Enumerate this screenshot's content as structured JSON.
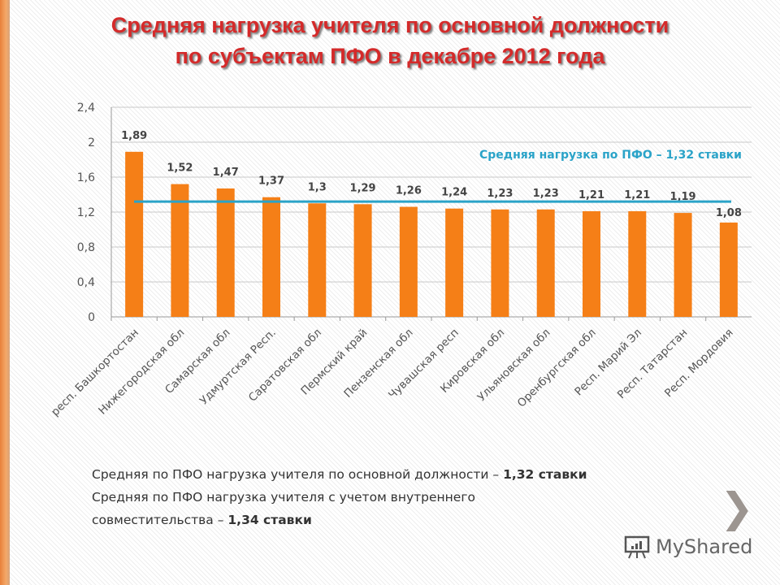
{
  "title_line1": "Средняя нагрузка учителя по основной должности",
  "title_line2": "по субъектам ПФО в декабре 2012 года",
  "chart_data": {
    "type": "bar",
    "categories": [
      "респ. Башкортостан",
      "Нижегородская обл",
      "Самарская обл",
      "Удмуртская Респ.",
      "Саратовская обл",
      "Пермский край",
      "Пензенская обл",
      "Чувашская респ",
      "Кировская обл",
      "Ульяновская обл",
      "Оренбургская обл",
      "Респ. Марий Эл",
      "Респ. Татарстан",
      "Респ. Мордовия"
    ],
    "values": [
      1.89,
      1.52,
      1.47,
      1.37,
      1.3,
      1.29,
      1.26,
      1.24,
      1.23,
      1.23,
      1.21,
      1.21,
      1.19,
      1.08
    ],
    "data_labels": [
      "1,89",
      "1,52",
      "1,47",
      "1,37",
      "1,3",
      "1,29",
      "1,26",
      "1,24",
      "1,23",
      "1,23",
      "1,21",
      "1,21",
      "1,19",
      "1,08"
    ],
    "ylim": [
      0,
      2.4
    ],
    "yticks": [
      "0",
      "0,4",
      "0,8",
      "1,2",
      "1,6",
      "2",
      "2,4"
    ],
    "grid": true,
    "bar_color": "#f57f17",
    "reference_line": {
      "value": 1.32,
      "label": "Средняя нагрузка по ПФО – 1,32 ставки",
      "color": "#2aa3c8"
    }
  },
  "notes": {
    "line1_text": "Средняя по ПФО нагрузка учителя по основной должности – ",
    "line1_bold": "1,32 ставки",
    "line2_text": "Средняя по ПФО нагрузка учителя с учетом внутреннего",
    "line3_text": "совместительства – ",
    "line3_bold": "1,34 ставки"
  },
  "next_icon": "chevron-right-icon",
  "logo_text": "MyShared"
}
